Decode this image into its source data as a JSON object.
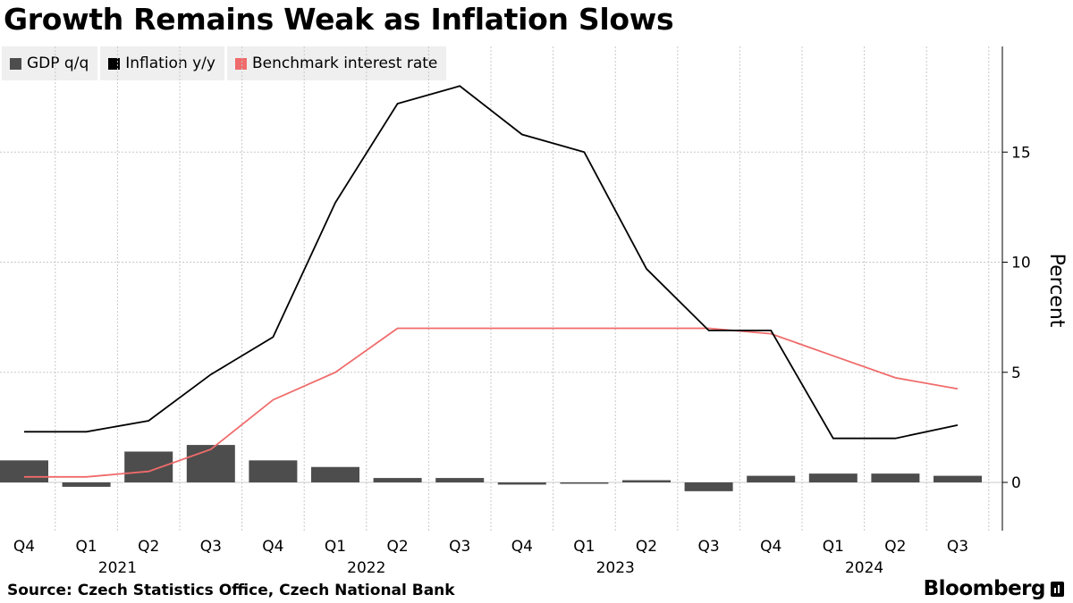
{
  "title": "Growth Remains Weak as Inflation Slows",
  "source": "Source: Czech Statistics Office, Czech National Bank",
  "brand": "Bloomberg",
  "colors": {
    "gdp": "#4d4d4d",
    "inflation": "#000000",
    "rate": "#f06b6b",
    "grid": "#c8c8c8"
  },
  "chart_data": {
    "type": "bar+line",
    "categories": [
      "Q4",
      "Q1",
      "Q2",
      "Q3",
      "Q4",
      "Q1",
      "Q2",
      "Q3",
      "Q4",
      "Q1",
      "Q2",
      "Q3",
      "Q4",
      "Q1",
      "Q2",
      "Q3"
    ],
    "years": [
      {
        "label": "2021",
        "index": 2
      },
      {
        "label": "2022",
        "index": 6
      },
      {
        "label": "2023",
        "index": 10
      },
      {
        "label": "2024",
        "index": 14
      }
    ],
    "series": [
      {
        "name": "GDP q/q",
        "kind": "bar",
        "values": [
          1.0,
          -0.2,
          1.4,
          1.7,
          1.0,
          0.7,
          0.2,
          0.2,
          -0.1,
          0.0,
          0.1,
          -0.4,
          0.3,
          0.4,
          0.4,
          0.3
        ]
      },
      {
        "name": "Inflation y/y",
        "kind": "line",
        "values": [
          2.3,
          2.3,
          2.8,
          4.9,
          6.6,
          12.7,
          17.2,
          18.0,
          15.8,
          15.0,
          9.7,
          6.9,
          6.9,
          2.0,
          2.0,
          2.6
        ]
      },
      {
        "name": "Benchmark interest rate",
        "kind": "line",
        "values": [
          0.25,
          0.25,
          0.5,
          1.5,
          3.75,
          5.0,
          7.0,
          7.0,
          7.0,
          7.0,
          7.0,
          7.0,
          6.75,
          5.75,
          4.75,
          4.25
        ]
      }
    ],
    "yticks": [
      0,
      5,
      10,
      15
    ],
    "ylim": [
      -2,
      19.8
    ],
    "ylabel": "Percent",
    "xlabel": "",
    "legend": "top-left"
  }
}
